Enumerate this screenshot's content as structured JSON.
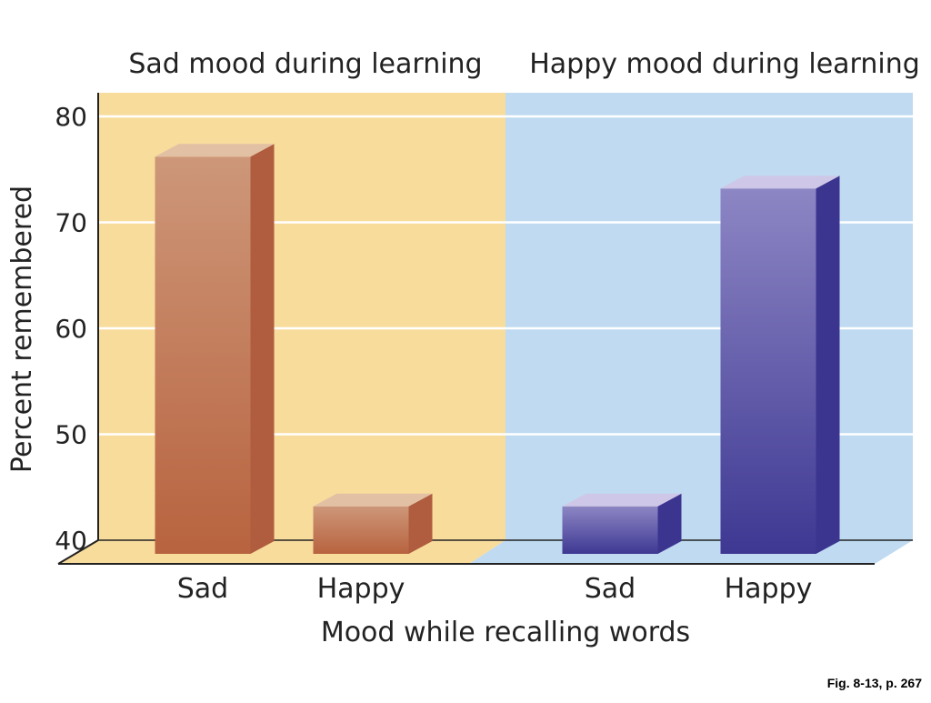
{
  "chart_data": {
    "type": "bar",
    "groups": [
      "Sad mood during learning",
      "Happy mood during learning"
    ],
    "categories": [
      "Sad",
      "Happy",
      "Sad",
      "Happy"
    ],
    "series": [
      {
        "values": [
          78,
          45,
          45,
          75
        ]
      }
    ],
    "bar_group_index": [
      0,
      0,
      1,
      1
    ],
    "xlabel": "Mood while recalling words",
    "ylabel": "Percent remembered",
    "yticks": [
      "40",
      "50",
      "60",
      "70",
      "80"
    ],
    "ylim": [
      40,
      80
    ],
    "grid": true,
    "colors": {
      "sad_panel": "#f8dc9c",
      "happy_panel": "#bfdaf1",
      "sad_bar_front_top": "#cd9779",
      "sad_bar_front_bottom": "#b8633f",
      "sad_bar_side": "#b05c3e",
      "sad_bar_top": "#e2c0a4",
      "happy_bar_front_top": "#8d86c4",
      "happy_bar_front_bottom": "#3e3893",
      "happy_bar_side": "#3c3590",
      "happy_bar_top": "#cfc7e7"
    }
  },
  "caption": "Fig. 8-13, p. 267"
}
